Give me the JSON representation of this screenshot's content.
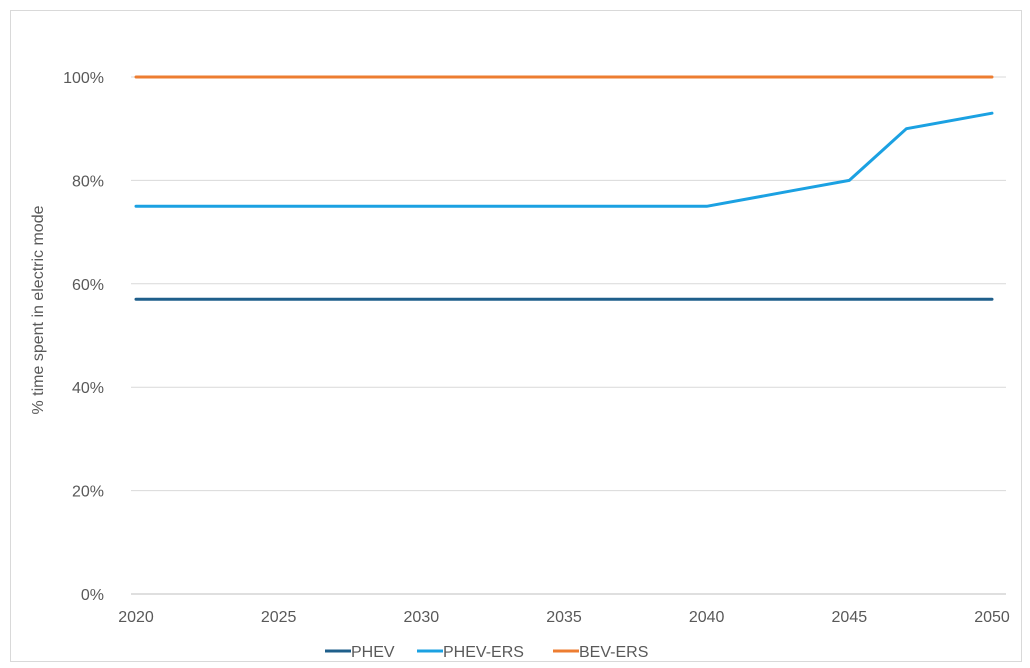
{
  "chart_data": {
    "type": "line",
    "title": "",
    "xlabel": "",
    "ylabel": "% time spent in electric mode",
    "x": [
      2020,
      2025,
      2030,
      2035,
      2040,
      2043,
      2045,
      2047,
      2050
    ],
    "xticks": [
      "2020",
      "2025",
      "2030",
      "2035",
      "2040",
      "2045",
      "2050"
    ],
    "xlim": [
      2020,
      2050
    ],
    "yticks": [
      "0%",
      "20%",
      "40%",
      "60%",
      "80%",
      "100%"
    ],
    "ylim": [
      0,
      100
    ],
    "grid": "horizontal",
    "legend_position": "bottom",
    "series": [
      {
        "name": "PHEV",
        "color": "#1f5f8b",
        "values": [
          57,
          57,
          57,
          57,
          57,
          57,
          57,
          57,
          57
        ]
      },
      {
        "name": "PHEV-ERS",
        "color": "#1ba1e2",
        "values": [
          75,
          75,
          75,
          75,
          75,
          78,
          80,
          90,
          93
        ]
      },
      {
        "name": "BEV-ERS",
        "color": "#ed7d31",
        "values": [
          100,
          100,
          100,
          100,
          100,
          100,
          100,
          100,
          100
        ]
      }
    ]
  }
}
